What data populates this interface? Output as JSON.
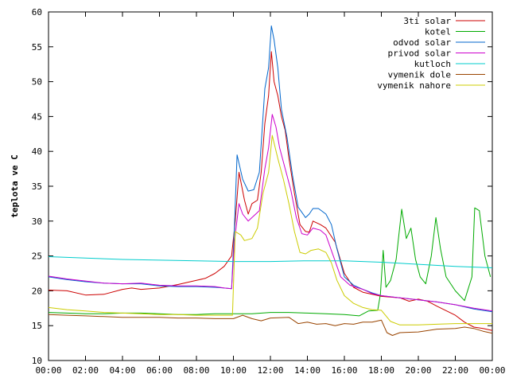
{
  "chart_data": {
    "type": "line",
    "ylabel": "teplota ve C",
    "xlim": [
      0,
      24
    ],
    "ylim": [
      10,
      60
    ],
    "x_ticks": [
      "00:00",
      "02:00",
      "04:00",
      "06:00",
      "08:00",
      "10:00",
      "12:00",
      "14:00",
      "16:00",
      "18:00",
      "20:00",
      "22:00",
      "00:00"
    ],
    "y_ticks": [
      "10",
      "15",
      "20",
      "25",
      "30",
      "35",
      "40",
      "45",
      "50",
      "55",
      "60"
    ],
    "grid": false,
    "legend_position": "top-right",
    "series": [
      {
        "name": "3ti solar",
        "color": "#cc0000",
        "points": [
          [
            0,
            20.1
          ],
          [
            1,
            20.0
          ],
          [
            2,
            19.4
          ],
          [
            3,
            19.5
          ],
          [
            4,
            20.2
          ],
          [
            4.5,
            20.4
          ],
          [
            5,
            20.2
          ],
          [
            6,
            20.4
          ],
          [
            7,
            20.9
          ],
          [
            8,
            21.5
          ],
          [
            8.5,
            21.8
          ],
          [
            9,
            22.5
          ],
          [
            9.5,
            23.5
          ],
          [
            9.9,
            25.0
          ],
          [
            10.1,
            30.0
          ],
          [
            10.3,
            37.0
          ],
          [
            10.6,
            33.0
          ],
          [
            10.8,
            31.0
          ],
          [
            11,
            32.5
          ],
          [
            11.3,
            33.0
          ],
          [
            11.5,
            37.0
          ],
          [
            11.7,
            44.0
          ],
          [
            11.9,
            48.0
          ],
          [
            12.05,
            54.3
          ],
          [
            12.2,
            50.0
          ],
          [
            12.4,
            48.0
          ],
          [
            12.6,
            45.0
          ],
          [
            12.8,
            43.0
          ],
          [
            13,
            39.0
          ],
          [
            13.3,
            34.0
          ],
          [
            13.6,
            29.5
          ],
          [
            13.9,
            28.5
          ],
          [
            14.1,
            28.4
          ],
          [
            14.3,
            30.0
          ],
          [
            14.7,
            29.5
          ],
          [
            15,
            29.0
          ],
          [
            15.5,
            27.0
          ],
          [
            16,
            22.5
          ],
          [
            16.5,
            20.5
          ],
          [
            17,
            19.8
          ],
          [
            17.5,
            19.5
          ],
          [
            18,
            19.2
          ],
          [
            19,
            19.0
          ],
          [
            19.5,
            18.5
          ],
          [
            20,
            18.8
          ],
          [
            20.5,
            18.5
          ],
          [
            21,
            17.8
          ],
          [
            22,
            16.5
          ],
          [
            22.5,
            15.5
          ],
          [
            23,
            14.8
          ],
          [
            23.5,
            14.6
          ],
          [
            24,
            14.3
          ]
        ]
      },
      {
        "name": "kotel",
        "color": "#00aa00",
        "points": [
          [
            0,
            16.9
          ],
          [
            1,
            16.8
          ],
          [
            2,
            16.7
          ],
          [
            3,
            16.7
          ],
          [
            4,
            16.8
          ],
          [
            5,
            16.8
          ],
          [
            6,
            16.7
          ],
          [
            7,
            16.6
          ],
          [
            8,
            16.6
          ],
          [
            9,
            16.7
          ],
          [
            10,
            16.7
          ],
          [
            11,
            16.7
          ],
          [
            12,
            16.9
          ],
          [
            13,
            16.9
          ],
          [
            14,
            16.8
          ],
          [
            15,
            16.7
          ],
          [
            16,
            16.6
          ],
          [
            16.8,
            16.4
          ],
          [
            17.3,
            17.1
          ],
          [
            17.8,
            17.2
          ],
          [
            17.95,
            19.5
          ],
          [
            18.1,
            25.8
          ],
          [
            18.25,
            20.5
          ],
          [
            18.5,
            21.5
          ],
          [
            18.8,
            24.5
          ],
          [
            19.1,
            31.7
          ],
          [
            19.35,
            27.5
          ],
          [
            19.6,
            29.0
          ],
          [
            19.85,
            24.5
          ],
          [
            20.1,
            22.0
          ],
          [
            20.4,
            21.0
          ],
          [
            20.7,
            25.0
          ],
          [
            20.95,
            30.5
          ],
          [
            21.2,
            26.0
          ],
          [
            21.5,
            22.0
          ],
          [
            22,
            20.0
          ],
          [
            22.5,
            18.6
          ],
          [
            22.9,
            22.0
          ],
          [
            23.05,
            31.9
          ],
          [
            23.3,
            31.5
          ],
          [
            23.6,
            25.0
          ],
          [
            23.9,
            22.0
          ]
        ]
      },
      {
        "name": "odvod solar",
        "color": "#0066cc",
        "points": [
          [
            0,
            22.0
          ],
          [
            1,
            21.6
          ],
          [
            2,
            21.3
          ],
          [
            3,
            21.1
          ],
          [
            4,
            21.0
          ],
          [
            5,
            21.0
          ],
          [
            6,
            20.7
          ],
          [
            7,
            20.6
          ],
          [
            8,
            20.6
          ],
          [
            9,
            20.5
          ],
          [
            9.5,
            20.4
          ],
          [
            9.9,
            20.3
          ],
          [
            10.05,
            29.0
          ],
          [
            10.2,
            39.5
          ],
          [
            10.5,
            36.0
          ],
          [
            10.8,
            34.3
          ],
          [
            11.1,
            34.5
          ],
          [
            11.4,
            37.0
          ],
          [
            11.7,
            49.0
          ],
          [
            11.9,
            52.0
          ],
          [
            12.05,
            58.0
          ],
          [
            12.2,
            56.0
          ],
          [
            12.4,
            52.0
          ],
          [
            12.6,
            46.0
          ],
          [
            12.9,
            42.0
          ],
          [
            13.2,
            36.5
          ],
          [
            13.5,
            32.0
          ],
          [
            13.9,
            30.5
          ],
          [
            14.1,
            31.0
          ],
          [
            14.3,
            31.8
          ],
          [
            14.6,
            31.8
          ],
          [
            15,
            31.0
          ],
          [
            15.3,
            29.5
          ],
          [
            15.6,
            26.0
          ],
          [
            16,
            22.0
          ],
          [
            16.5,
            20.8
          ],
          [
            17,
            20.2
          ],
          [
            17.5,
            19.7
          ],
          [
            18,
            19.3
          ],
          [
            19,
            19.0
          ],
          [
            20,
            18.7
          ],
          [
            21,
            18.4
          ],
          [
            22,
            18.0
          ],
          [
            23,
            17.4
          ],
          [
            24,
            17.0
          ]
        ]
      },
      {
        "name": "privod solar",
        "color": "#cc00cc",
        "points": [
          [
            0,
            22.1
          ],
          [
            1,
            21.7
          ],
          [
            2,
            21.4
          ],
          [
            3,
            21.1
          ],
          [
            4,
            21.0
          ],
          [
            5,
            21.1
          ],
          [
            6,
            20.8
          ],
          [
            7,
            20.7
          ],
          [
            8,
            20.7
          ],
          [
            9,
            20.6
          ],
          [
            9.5,
            20.4
          ],
          [
            9.9,
            20.3
          ],
          [
            10.05,
            27.0
          ],
          [
            10.3,
            32.5
          ],
          [
            10.5,
            31.0
          ],
          [
            10.8,
            30.0
          ],
          [
            11,
            30.5
          ],
          [
            11.4,
            31.5
          ],
          [
            11.7,
            37.5
          ],
          [
            11.9,
            40.5
          ],
          [
            12.1,
            45.3
          ],
          [
            12.3,
            43.5
          ],
          [
            12.5,
            40.5
          ],
          [
            12.8,
            37.5
          ],
          [
            13.1,
            34.5
          ],
          [
            13.4,
            30.5
          ],
          [
            13.7,
            28.2
          ],
          [
            14,
            28.0
          ],
          [
            14.3,
            29.0
          ],
          [
            14.7,
            28.7
          ],
          [
            15,
            28.0
          ],
          [
            15.4,
            25.0
          ],
          [
            15.8,
            22.0
          ],
          [
            16.3,
            20.8
          ],
          [
            17,
            20.2
          ],
          [
            17.5,
            19.6
          ],
          [
            18,
            19.3
          ],
          [
            19,
            19.0
          ],
          [
            20,
            18.7
          ],
          [
            21,
            18.4
          ],
          [
            22,
            18.0
          ],
          [
            23,
            17.5
          ],
          [
            24,
            17.1
          ]
        ]
      },
      {
        "name": "kutloch",
        "color": "#00cccc",
        "points": [
          [
            0,
            24.9
          ],
          [
            2,
            24.7
          ],
          [
            4,
            24.5
          ],
          [
            6,
            24.4
          ],
          [
            8,
            24.3
          ],
          [
            10,
            24.2
          ],
          [
            12,
            24.2
          ],
          [
            14,
            24.3
          ],
          [
            16,
            24.3
          ],
          [
            18,
            24.1
          ],
          [
            20,
            23.8
          ],
          [
            22,
            23.5
          ],
          [
            24,
            23.3
          ]
        ]
      },
      {
        "name": "vymenik dole",
        "color": "#994400",
        "points": [
          [
            0,
            16.6
          ],
          [
            1,
            16.5
          ],
          [
            2,
            16.4
          ],
          [
            3,
            16.3
          ],
          [
            4,
            16.2
          ],
          [
            5,
            16.2
          ],
          [
            6,
            16.2
          ],
          [
            7,
            16.1
          ],
          [
            8,
            16.1
          ],
          [
            9,
            16.0
          ],
          [
            10,
            16.0
          ],
          [
            10.5,
            16.5
          ],
          [
            11,
            16.0
          ],
          [
            11.5,
            15.7
          ],
          [
            12,
            16.1
          ],
          [
            13,
            16.2
          ],
          [
            13.5,
            15.3
          ],
          [
            14,
            15.5
          ],
          [
            14.5,
            15.2
          ],
          [
            15,
            15.3
          ],
          [
            15.5,
            15.0
          ],
          [
            16,
            15.3
          ],
          [
            16.5,
            15.2
          ],
          [
            17,
            15.5
          ],
          [
            17.5,
            15.5
          ],
          [
            18,
            15.8
          ],
          [
            18.3,
            14.0
          ],
          [
            18.6,
            13.6
          ],
          [
            19,
            14.0
          ],
          [
            20,
            14.1
          ],
          [
            21,
            14.5
          ],
          [
            22,
            14.6
          ],
          [
            22.5,
            14.8
          ],
          [
            23,
            14.6
          ],
          [
            23.5,
            14.2
          ],
          [
            24,
            13.9
          ]
        ]
      },
      {
        "name": "vymenik nahore",
        "color": "#cccc00",
        "points": [
          [
            0,
            17.6
          ],
          [
            1,
            17.3
          ],
          [
            2,
            17.1
          ],
          [
            3,
            16.9
          ],
          [
            4,
            16.8
          ],
          [
            5,
            16.7
          ],
          [
            6,
            16.6
          ],
          [
            7,
            16.6
          ],
          [
            8,
            16.5
          ],
          [
            9,
            16.5
          ],
          [
            9.95,
            16.5
          ],
          [
            10.1,
            28.5
          ],
          [
            10.4,
            28.0
          ],
          [
            10.6,
            27.2
          ],
          [
            11,
            27.5
          ],
          [
            11.3,
            29.0
          ],
          [
            11.6,
            34.0
          ],
          [
            11.9,
            37.0
          ],
          [
            12.1,
            42.3
          ],
          [
            12.4,
            39.0
          ],
          [
            12.7,
            36.0
          ],
          [
            13,
            32.5
          ],
          [
            13.3,
            28.5
          ],
          [
            13.6,
            25.5
          ],
          [
            13.9,
            25.3
          ],
          [
            14.2,
            25.8
          ],
          [
            14.6,
            26.0
          ],
          [
            15,
            25.5
          ],
          [
            15.3,
            24.0
          ],
          [
            15.6,
            21.5
          ],
          [
            16,
            19.3
          ],
          [
            16.5,
            18.2
          ],
          [
            17,
            17.6
          ],
          [
            17.5,
            17.3
          ],
          [
            18,
            17.2
          ],
          [
            18.5,
            15.6
          ],
          [
            19,
            15.1
          ],
          [
            20,
            15.1
          ],
          [
            21,
            15.2
          ],
          [
            22,
            15.3
          ],
          [
            23,
            15.3
          ],
          [
            24,
            15.3
          ]
        ]
      }
    ]
  }
}
